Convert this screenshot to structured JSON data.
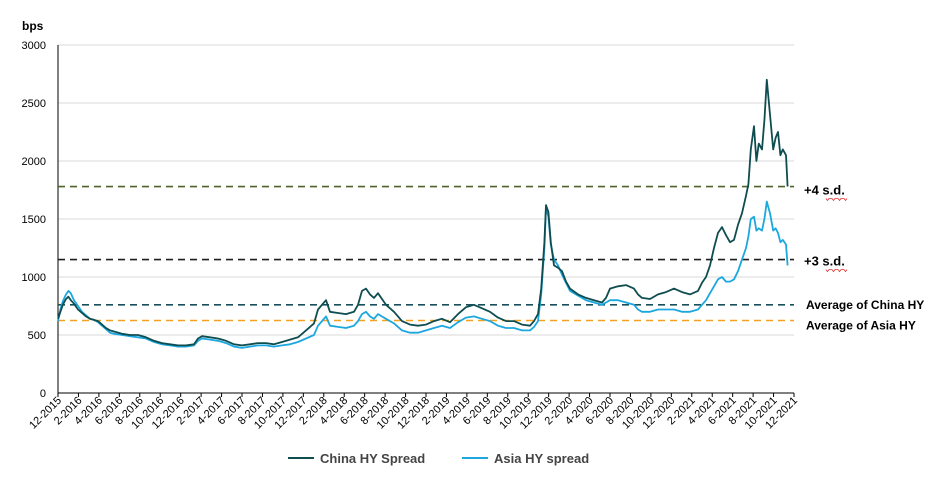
{
  "chart_data": {
    "type": "line",
    "unit_label": "bps",
    "ylim": [
      0,
      3000
    ],
    "y_ticks": [
      "0",
      "500",
      "1000",
      "1500",
      "2000",
      "2500",
      "3000"
    ],
    "x_ticks": [
      "12-2015",
      "2-2016",
      "4-2016",
      "6-2016",
      "8-2016",
      "10-2016",
      "12-2016",
      "2-2017",
      "4-2017",
      "6-2017",
      "8-2017",
      "10-2017",
      "12-2017",
      "2-2018",
      "4-2018",
      "6-2018",
      "8-2018",
      "10-2018",
      "12-2018",
      "2-2019",
      "4-2019",
      "6-2019",
      "8-2019",
      "10-2019",
      "12-2019",
      "2-2020",
      "4-2020",
      "6-2020",
      "8-2020",
      "10-2020",
      "12-2020",
      "2-2021",
      "4-2021",
      "6-2021",
      "8-2021",
      "10-2021",
      "12-2021"
    ],
    "grid": true,
    "legend_position": "bottom",
    "reference_lines": [
      {
        "label": "+4 s.d.",
        "value": 1780,
        "color": "#4f6228"
      },
      {
        "label": "+3 s.d.",
        "value": 1150,
        "color": "#1f1f1f"
      },
      {
        "label": "Average of China HY",
        "value": 760,
        "color": "#17505a"
      },
      {
        "label": "Average of Asia HY",
        "value": 625,
        "color": "#f4a020"
      }
    ],
    "series": [
      {
        "name": "China HY Spread",
        "color": "#0e4d50",
        "points": [
          [
            0,
            640
          ],
          [
            0.3,
            700
          ],
          [
            0.6,
            760
          ],
          [
            1,
            810
          ],
          [
            1.3,
            830
          ],
          [
            1.6,
            800
          ],
          [
            2,
            770
          ],
          [
            2.5,
            720
          ],
          [
            3,
            690
          ],
          [
            3.5,
            660
          ],
          [
            4,
            640
          ],
          [
            4.5,
            630
          ],
          [
            5,
            620
          ],
          [
            5.5,
            590
          ],
          [
            6,
            560
          ],
          [
            6.5,
            540
          ],
          [
            7,
            530
          ],
          [
            8,
            510
          ],
          [
            9,
            500
          ],
          [
            10,
            500
          ],
          [
            11,
            480
          ],
          [
            12,
            450
          ],
          [
            13,
            430
          ],
          [
            14,
            420
          ],
          [
            15,
            410
          ],
          [
            16,
            410
          ],
          [
            17,
            420
          ],
          [
            17.5,
            470
          ],
          [
            18,
            490
          ],
          [
            19,
            480
          ],
          [
            20,
            470
          ],
          [
            21,
            450
          ],
          [
            22,
            420
          ],
          [
            23,
            410
          ],
          [
            24,
            420
          ],
          [
            25,
            430
          ],
          [
            26,
            430
          ],
          [
            27,
            420
          ],
          [
            28,
            440
          ],
          [
            29,
            460
          ],
          [
            30,
            480
          ],
          [
            31,
            540
          ],
          [
            32,
            600
          ],
          [
            32.5,
            720
          ],
          [
            33,
            760
          ],
          [
            33.5,
            800
          ],
          [
            34,
            700
          ],
          [
            35,
            690
          ],
          [
            36,
            680
          ],
          [
            37,
            700
          ],
          [
            37.5,
            760
          ],
          [
            38,
            880
          ],
          [
            38.5,
            900
          ],
          [
            39,
            850
          ],
          [
            39.5,
            820
          ],
          [
            40,
            860
          ],
          [
            41,
            760
          ],
          [
            42,
            700
          ],
          [
            43,
            620
          ],
          [
            44,
            590
          ],
          [
            45,
            580
          ],
          [
            46,
            590
          ],
          [
            47,
            620
          ],
          [
            48,
            640
          ],
          [
            49,
            610
          ],
          [
            50,
            680
          ],
          [
            51,
            740
          ],
          [
            52,
            760
          ],
          [
            53,
            730
          ],
          [
            54,
            700
          ],
          [
            55,
            650
          ],
          [
            56,
            620
          ],
          [
            57,
            620
          ],
          [
            58,
            590
          ],
          [
            59,
            580
          ],
          [
            59.5,
            620
          ],
          [
            60,
            680
          ],
          [
            60.4,
            900
          ],
          [
            60.8,
            1300
          ],
          [
            61,
            1620
          ],
          [
            61.3,
            1560
          ],
          [
            61.6,
            1300
          ],
          [
            62,
            1100
          ],
          [
            62.5,
            1080
          ],
          [
            63,
            1050
          ],
          [
            63.5,
            960
          ],
          [
            64,
            900
          ],
          [
            65,
            850
          ],
          [
            66,
            820
          ],
          [
            67,
            800
          ],
          [
            68,
            780
          ],
          [
            68.5,
            820
          ],
          [
            69,
            900
          ],
          [
            70,
            920
          ],
          [
            71,
            930
          ],
          [
            72,
            900
          ],
          [
            72.5,
            850
          ],
          [
            73,
            820
          ],
          [
            74,
            810
          ],
          [
            75,
            850
          ],
          [
            76,
            870
          ],
          [
            77,
            900
          ],
          [
            78,
            870
          ],
          [
            79,
            850
          ],
          [
            80,
            880
          ],
          [
            80.5,
            950
          ],
          [
            81,
            1000
          ],
          [
            81.5,
            1100
          ],
          [
            82,
            1250
          ],
          [
            82.5,
            1380
          ],
          [
            83,
            1430
          ],
          [
            83.5,
            1360
          ],
          [
            84,
            1300
          ],
          [
            84.5,
            1320
          ],
          [
            85,
            1450
          ],
          [
            85.5,
            1550
          ],
          [
            86,
            1700
          ],
          [
            86.3,
            1800
          ],
          [
            86.6,
            2100
          ],
          [
            87,
            2300
          ],
          [
            87.3,
            2000
          ],
          [
            87.6,
            2150
          ],
          [
            88,
            2100
          ],
          [
            88.3,
            2350
          ],
          [
            88.6,
            2700
          ],
          [
            89,
            2400
          ],
          [
            89.4,
            2100
          ],
          [
            89.7,
            2200
          ],
          [
            90,
            2250
          ],
          [
            90.3,
            2050
          ],
          [
            90.6,
            2100
          ],
          [
            91,
            2050
          ],
          [
            91.2,
            1780
          ]
        ]
      },
      {
        "name": "Asia HY spread",
        "color": "#1ca7df",
        "points": [
          [
            0,
            620
          ],
          [
            0.3,
            720
          ],
          [
            0.6,
            790
          ],
          [
            1,
            850
          ],
          [
            1.3,
            880
          ],
          [
            1.6,
            860
          ],
          [
            2,
            800
          ],
          [
            2.5,
            750
          ],
          [
            3,
            700
          ],
          [
            3.5,
            670
          ],
          [
            4,
            640
          ],
          [
            4.5,
            630
          ],
          [
            5,
            610
          ],
          [
            5.5,
            580
          ],
          [
            6,
            550
          ],
          [
            6.5,
            520
          ],
          [
            7,
            510
          ],
          [
            8,
            500
          ],
          [
            9,
            490
          ],
          [
            10,
            480
          ],
          [
            11,
            470
          ],
          [
            12,
            440
          ],
          [
            13,
            420
          ],
          [
            14,
            410
          ],
          [
            15,
            400
          ],
          [
            16,
            400
          ],
          [
            17,
            410
          ],
          [
            17.5,
            450
          ],
          [
            18,
            470
          ],
          [
            19,
            460
          ],
          [
            20,
            450
          ],
          [
            21,
            430
          ],
          [
            22,
            400
          ],
          [
            23,
            390
          ],
          [
            24,
            400
          ],
          [
            25,
            410
          ],
          [
            26,
            410
          ],
          [
            27,
            400
          ],
          [
            28,
            410
          ],
          [
            29,
            420
          ],
          [
            30,
            440
          ],
          [
            31,
            470
          ],
          [
            32,
            500
          ],
          [
            32.5,
            580
          ],
          [
            33,
            620
          ],
          [
            33.5,
            660
          ],
          [
            34,
            580
          ],
          [
            35,
            570
          ],
          [
            36,
            560
          ],
          [
            37,
            580
          ],
          [
            37.5,
            620
          ],
          [
            38,
            680
          ],
          [
            38.5,
            700
          ],
          [
            39,
            660
          ],
          [
            39.5,
            640
          ],
          [
            40,
            680
          ],
          [
            41,
            640
          ],
          [
            42,
            600
          ],
          [
            43,
            540
          ],
          [
            44,
            520
          ],
          [
            45,
            520
          ],
          [
            46,
            540
          ],
          [
            47,
            560
          ],
          [
            48,
            580
          ],
          [
            49,
            560
          ],
          [
            50,
            610
          ],
          [
            51,
            650
          ],
          [
            52,
            660
          ],
          [
            53,
            640
          ],
          [
            54,
            620
          ],
          [
            55,
            580
          ],
          [
            56,
            560
          ],
          [
            57,
            560
          ],
          [
            58,
            540
          ],
          [
            59,
            540
          ],
          [
            59.5,
            570
          ],
          [
            60,
            620
          ],
          [
            60.4,
            850
          ],
          [
            60.8,
            1250
          ],
          [
            61,
            1600
          ],
          [
            61.3,
            1520
          ],
          [
            61.6,
            1280
          ],
          [
            62,
            1150
          ],
          [
            62.5,
            1100
          ],
          [
            63,
            1020
          ],
          [
            63.5,
            950
          ],
          [
            64,
            880
          ],
          [
            65,
            840
          ],
          [
            66,
            800
          ],
          [
            67,
            780
          ],
          [
            68,
            760
          ],
          [
            68.5,
            780
          ],
          [
            69,
            800
          ],
          [
            70,
            800
          ],
          [
            71,
            780
          ],
          [
            72,
            760
          ],
          [
            72.5,
            720
          ],
          [
            73,
            700
          ],
          [
            74,
            700
          ],
          [
            75,
            720
          ],
          [
            76,
            720
          ],
          [
            77,
            720
          ],
          [
            78,
            700
          ],
          [
            79,
            700
          ],
          [
            80,
            720
          ],
          [
            80.5,
            760
          ],
          [
            81,
            800
          ],
          [
            81.5,
            860
          ],
          [
            82,
            920
          ],
          [
            82.5,
            980
          ],
          [
            83,
            1000
          ],
          [
            83.5,
            960
          ],
          [
            84,
            960
          ],
          [
            84.5,
            980
          ],
          [
            85,
            1050
          ],
          [
            85.5,
            1150
          ],
          [
            86,
            1250
          ],
          [
            86.3,
            1350
          ],
          [
            86.6,
            1500
          ],
          [
            87,
            1520
          ],
          [
            87.3,
            1400
          ],
          [
            87.6,
            1420
          ],
          [
            88,
            1400
          ],
          [
            88.3,
            1500
          ],
          [
            88.6,
            1650
          ],
          [
            89,
            1550
          ],
          [
            89.4,
            1400
          ],
          [
            89.7,
            1420
          ],
          [
            90,
            1380
          ],
          [
            90.3,
            1300
          ],
          [
            90.6,
            1320
          ],
          [
            91,
            1280
          ],
          [
            91.2,
            1100
          ]
        ]
      }
    ]
  }
}
